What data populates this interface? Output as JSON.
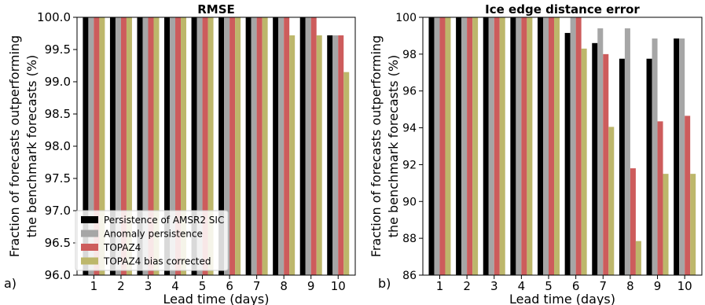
{
  "panels": [
    {
      "panel_label": "a)"
    },
    {
      "panel_label": "b)"
    }
  ],
  "chart_data": [
    {
      "type": "bar",
      "title": "RMSE",
      "xlabel": "Lead time (days)",
      "ylabel": "Fraction of forecasts outperforming the benchmark forecasts (%)",
      "ylabel_lines": [
        "Fraction of forecasts outperforming",
        "the benchmark forecasts (%)"
      ],
      "categories": [
        "1",
        "2",
        "3",
        "4",
        "5",
        "6",
        "7",
        "8",
        "9",
        "10"
      ],
      "ylim": [
        96.0,
        100.0
      ],
      "yticks": [
        96.0,
        96.5,
        97.0,
        97.5,
        98.0,
        98.5,
        99.0,
        99.5,
        100.0
      ],
      "ytick_labels": [
        "96.0",
        "96.5",
        "97.0",
        "97.5",
        "98.0",
        "98.5",
        "99.0",
        "99.5",
        "100.0"
      ],
      "grid": false,
      "legend_position": "bottom-left",
      "series": [
        {
          "name": "Persistence of AMSR2 SIC",
          "color": "#000000",
          "values": [
            100,
            100,
            100,
            100,
            100,
            100,
            100,
            100,
            100,
            99.72
          ]
        },
        {
          "name": "Anomaly persistence",
          "color": "#a6a6a6",
          "values": [
            100,
            100,
            100,
            100,
            100,
            100,
            100,
            100,
            100,
            99.72
          ]
        },
        {
          "name": "TOPAZ4",
          "color": "#cd5c5c",
          "values": [
            100,
            100,
            100,
            100,
            100,
            100,
            100,
            100,
            100,
            99.72
          ]
        },
        {
          "name": "TOPAZ4 bias corrected",
          "color": "#bdb76b",
          "values": [
            100,
            100,
            100,
            100,
            100,
            100,
            100,
            99.72,
            99.72,
            99.15
          ]
        }
      ]
    },
    {
      "type": "bar",
      "title": "Ice edge distance error",
      "xlabel": "Lead time (days)",
      "ylabel": "Fraction of forecasts outperforming the benchmark forecasts (%)",
      "ylabel_lines": [
        "Fraction of forecasts outperforming",
        "the benchmark forecasts (%)"
      ],
      "categories": [
        "1",
        "2",
        "3",
        "4",
        "5",
        "6",
        "7",
        "8",
        "9",
        "10"
      ],
      "ylim": [
        86.0,
        100.0
      ],
      "yticks": [
        86,
        88,
        90,
        92,
        94,
        96,
        98,
        100
      ],
      "ytick_labels": [
        "86",
        "88",
        "90",
        "92",
        "94",
        "96",
        "98",
        "100"
      ],
      "grid": false,
      "series": [
        {
          "name": "Persistence of AMSR2 SIC",
          "color": "#000000",
          "values": [
            100,
            100,
            100,
            100,
            100,
            99.15,
            98.6,
            97.75,
            97.75,
            98.85
          ]
        },
        {
          "name": "Anomaly persistence",
          "color": "#a6a6a6",
          "values": [
            100,
            100,
            100,
            100,
            100,
            100,
            99.4,
            99.4,
            98.85,
            98.85
          ]
        },
        {
          "name": "TOPAZ4",
          "color": "#cd5c5c",
          "values": [
            100,
            100,
            100,
            100,
            100,
            100,
            98.0,
            91.8,
            94.35,
            94.65
          ]
        },
        {
          "name": "TOPAZ4 bias corrected",
          "color": "#bdb76b",
          "values": [
            100,
            100,
            100,
            100,
            100,
            98.3,
            94.05,
            87.85,
            91.5,
            91.5
          ]
        }
      ]
    }
  ]
}
